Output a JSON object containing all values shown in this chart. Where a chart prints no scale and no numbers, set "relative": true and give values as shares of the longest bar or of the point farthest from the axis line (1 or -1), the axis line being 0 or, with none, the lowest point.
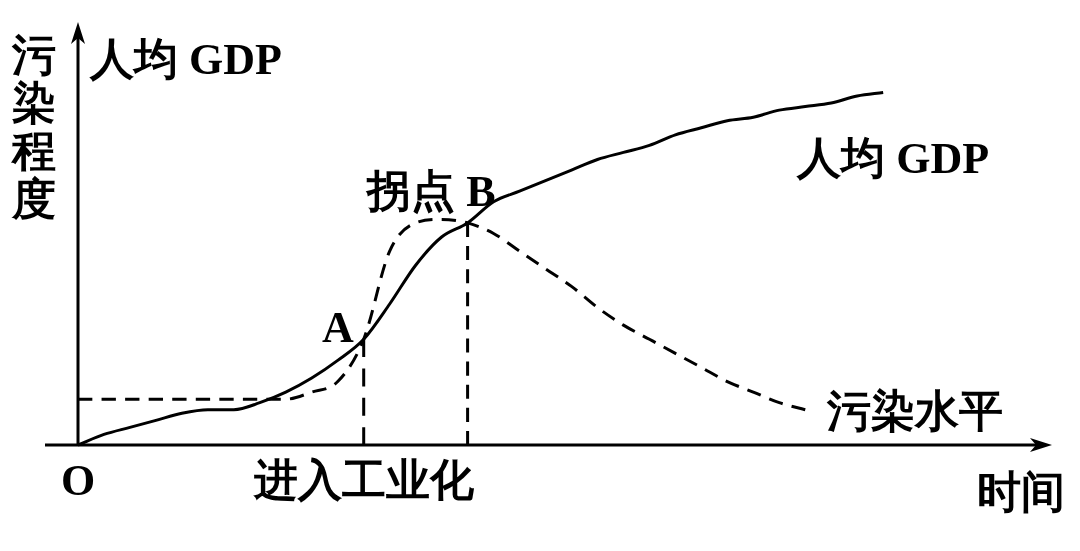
{
  "chart_data": {
    "type": "line",
    "relative": true,
    "xlabel": "时间",
    "ylabel": "污染程度",
    "categories": [
      "O",
      null,
      null,
      null,
      null,
      null,
      null,
      null,
      null,
      null,
      null,
      "进入工业化",
      null,
      null,
      null,
      null,
      null,
      null,
      null,
      null,
      null,
      null,
      null,
      null,
      null,
      null,
      null,
      null,
      null,
      null,
      null,
      null,
      null,
      null,
      null,
      null,
      null
    ],
    "series": [
      {
        "name": "人均 GDP",
        "color": "#000000",
        "line_style": "solid",
        "values": [
          0,
          0.03,
          0.05,
          0.07,
          0.09,
          0.1,
          0.1,
          0.12,
          0.15,
          0.19,
          0.24,
          0.3,
          0.4,
          0.51,
          0.59,
          0.63,
          0.69,
          0.72,
          0.75,
          0.78,
          0.81,
          0.83,
          0.85,
          0.88,
          0.9,
          0.92,
          0.93,
          0.95,
          0.96,
          0.97,
          0.99,
          1,
          null,
          null,
          null,
          null,
          null
        ]
      },
      {
        "name": "污染水平",
        "color": "#000000",
        "line_style": "dashed",
        "values": [
          0.13,
          0.13,
          0.13,
          0.13,
          0.13,
          0.13,
          0.13,
          0.13,
          0.13,
          0.15,
          0.18,
          0.3,
          0.55,
          0.63,
          0.64,
          0.63,
          0.6,
          0.55,
          0.5,
          0.45,
          0.39,
          0.34,
          0.3,
          0.26,
          0.22,
          0.18,
          0.15,
          0.12,
          0.1,
          null,
          null,
          null,
          null,
          null,
          null,
          null,
          null
        ]
      }
    ],
    "ref_lines": [
      {
        "axis": "x",
        "value": "进入工业化",
        "color": "#000000",
        "line_style": "dashed"
      }
    ],
    "annotations": [
      "人均 GDP",
      "A",
      {
        "text": "拐点 B",
        "y": 0.63
      }
    ]
  }
}
